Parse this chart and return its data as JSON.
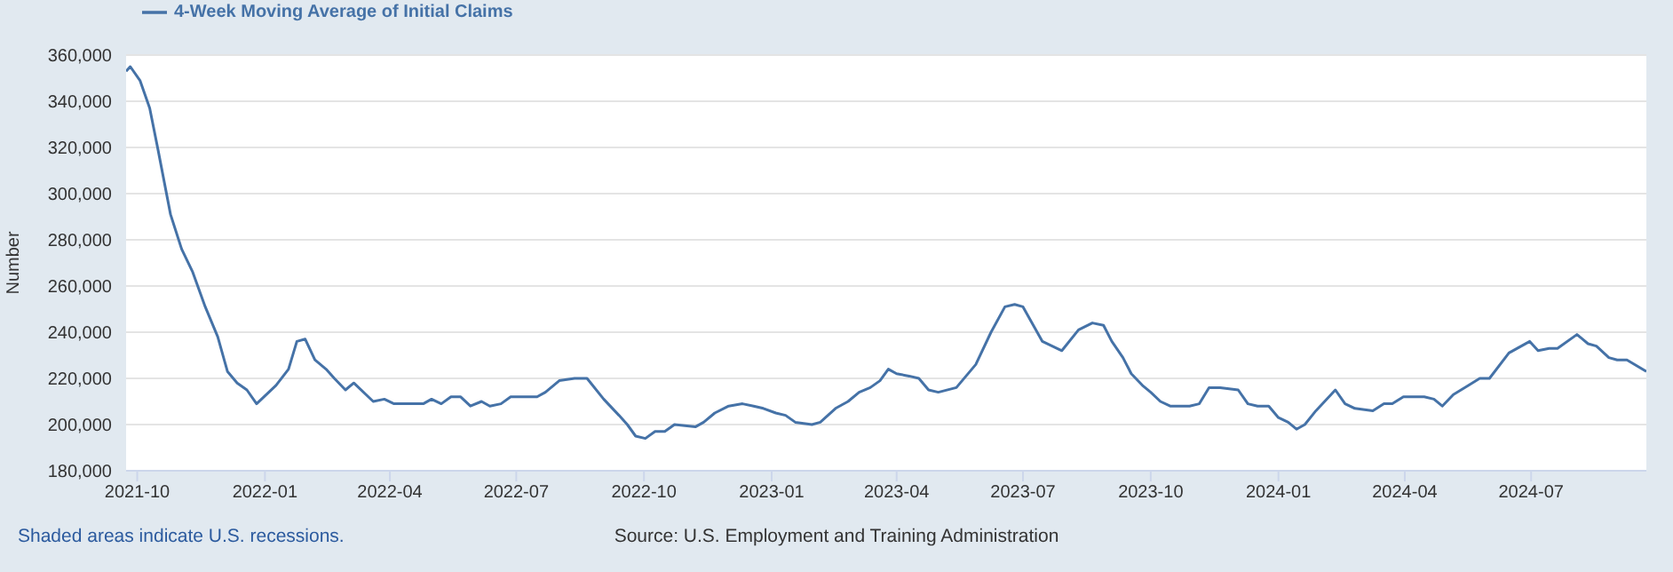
{
  "chart_data": {
    "type": "line",
    "ylabel": "Number",
    "legend": "top left",
    "grid": "y",
    "marker": "none",
    "line_style": "solid",
    "annotations": [
      "Shaded areas indicate U.S. recessions.",
      "Source: U.S. Employment and Training Administration"
    ],
    "xlim": [
      "2021-09-23",
      "2024-09-22"
    ],
    "xticks": [
      "2021-10",
      "2022-01",
      "2022-04",
      "2022-07",
      "2022-10",
      "2023-01",
      "2023-04",
      "2023-07",
      "2023-10",
      "2024-01",
      "2024-04",
      "2024-07"
    ],
    "ylim": [
      180000,
      360000
    ],
    "yticks": [
      {
        "value": 180000,
        "label": "180,000"
      },
      {
        "value": 200000,
        "label": "200,000"
      },
      {
        "value": 220000,
        "label": "220,000"
      },
      {
        "value": 240000,
        "label": "240,000"
      },
      {
        "value": 260000,
        "label": "260,000"
      },
      {
        "value": 280000,
        "label": "280,000"
      },
      {
        "value": 300000,
        "label": "300,000"
      },
      {
        "value": 320000,
        "label": "320,000"
      },
      {
        "value": 340000,
        "label": "340,000"
      },
      {
        "value": 360000,
        "label": "360,000"
      }
    ],
    "x": [
      "2021-09-23",
      "2021-09-26",
      "2021-10-03",
      "2021-10-10",
      "2021-10-16",
      "2021-10-25",
      "2021-11-02",
      "2021-11-10",
      "2021-11-19",
      "2021-11-28",
      "2021-12-05",
      "2021-12-12",
      "2021-12-19",
      "2021-12-26",
      "2022-01-09",
      "2022-01-18",
      "2022-01-24",
      "2022-01-30",
      "2022-02-06",
      "2022-02-14",
      "2022-02-20",
      "2022-02-28",
      "2022-03-06",
      "2022-03-20",
      "2022-03-28",
      "2022-04-04",
      "2022-04-18",
      "2022-04-25",
      "2022-05-01",
      "2022-05-08",
      "2022-05-15",
      "2022-05-22",
      "2022-05-29",
      "2022-06-06",
      "2022-06-12",
      "2022-06-20",
      "2022-06-27",
      "2022-07-16",
      "2022-07-22",
      "2022-08-01",
      "2022-08-12",
      "2022-08-21",
      "2022-09-02",
      "2022-09-13",
      "2022-09-19",
      "2022-09-25",
      "2022-10-02",
      "2022-10-09",
      "2022-10-16",
      "2022-10-23",
      "2022-11-07",
      "2022-11-13",
      "2022-11-21",
      "2022-12-01",
      "2022-12-11",
      "2022-12-19",
      "2022-12-26",
      "2023-01-04",
      "2023-01-11",
      "2023-01-18",
      "2023-01-30",
      "2023-02-05",
      "2023-02-16",
      "2023-02-25",
      "2023-03-05",
      "2023-03-13",
      "2023-03-20",
      "2023-03-26",
      "2023-04-01",
      "2023-04-10",
      "2023-04-17",
      "2023-04-24",
      "2023-05-01",
      "2023-05-14",
      "2023-05-28",
      "2023-06-08",
      "2023-06-18",
      "2023-06-25",
      "2023-07-01",
      "2023-07-15",
      "2023-07-29",
      "2023-08-10",
      "2023-08-20",
      "2023-08-28",
      "2023-09-03",
      "2023-09-11",
      "2023-09-17",
      "2023-09-25",
      "2023-10-01",
      "2023-10-08",
      "2023-10-15",
      "2023-10-29",
      "2023-11-05",
      "2023-11-12",
      "2023-11-20",
      "2023-12-03",
      "2023-12-10",
      "2023-12-17",
      "2023-12-25",
      "2024-01-01",
      "2024-01-08",
      "2024-01-14",
      "2024-01-20",
      "2024-01-28",
      "2024-02-11",
      "2024-02-18",
      "2024-02-25",
      "2024-03-09",
      "2024-03-17",
      "2024-03-23",
      "2024-03-31",
      "2024-04-15",
      "2024-04-22",
      "2024-04-28",
      "2024-05-06",
      "2024-05-17",
      "2024-05-25",
      "2024-06-01",
      "2024-06-15",
      "2024-06-30",
      "2024-07-06",
      "2024-07-14",
      "2024-07-20",
      "2024-08-03",
      "2024-08-11",
      "2024-08-17",
      "2024-08-26",
      "2024-09-01",
      "2024-09-08",
      "2024-09-22"
    ],
    "series": [
      {
        "name": "4-Week Moving Average of Initial Claims",
        "color": "#4572a7",
        "values": [
          353000,
          355000,
          349000,
          337000,
          319000,
          291000,
          276000,
          266000,
          251000,
          238000,
          223000,
          218000,
          215000,
          209000,
          217000,
          224000,
          236000,
          237000,
          228000,
          224000,
          220000,
          215000,
          218000,
          210000,
          211000,
          209000,
          209000,
          209000,
          211000,
          209000,
          212000,
          212000,
          208000,
          210000,
          208000,
          209000,
          212000,
          212000,
          214000,
          219000,
          220000,
          220000,
          211000,
          204000,
          200000,
          195000,
          194000,
          197000,
          197000,
          200000,
          199000,
          201000,
          205000,
          208000,
          209000,
          208000,
          207000,
          205000,
          204000,
          201000,
          200000,
          201000,
          207000,
          210000,
          214000,
          216000,
          219000,
          224000,
          222000,
          221000,
          220000,
          215000,
          214000,
          216000,
          226000,
          240000,
          251000,
          252000,
          251000,
          236000,
          232000,
          241000,
          244000,
          243000,
          236000,
          229000,
          222000,
          217000,
          214000,
          210000,
          208000,
          208000,
          209000,
          216000,
          216000,
          215000,
          209000,
          208000,
          208000,
          203000,
          201000,
          198000,
          200000,
          206000,
          215000,
          209000,
          207000,
          206000,
          209000,
          209000,
          212000,
          212000,
          211000,
          208000,
          213000,
          217000,
          220000,
          220000,
          231000,
          236000,
          232000,
          233000,
          233000,
          239000,
          235000,
          234000,
          229000,
          228000,
          228000,
          223000
        ]
      }
    ]
  }
}
